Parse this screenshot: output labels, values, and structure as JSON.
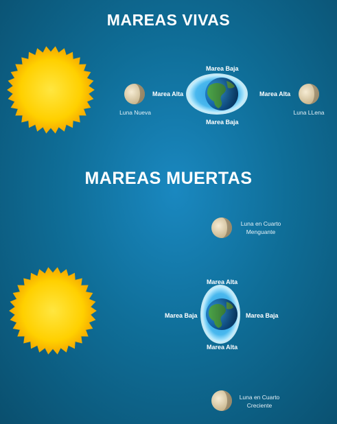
{
  "spring": {
    "title": "MAREAS VIVAS",
    "label_top": "Marea Baja",
    "label_bottom": "Marea Baja",
    "label_left": "Marea Alta",
    "label_right": "Marea Alta",
    "moon_left": "Luna Nueva",
    "moon_right": "Luna LLena"
  },
  "neap": {
    "title": "MAREAS MUERTAS",
    "label_top": "Marea Alta",
    "label_bottom": "Marea Alta",
    "label_left": "Marea Baja",
    "label_right": "Marea Baja",
    "moon_top_line1": "Luna en Cuarto",
    "moon_top_line2": "Menguante",
    "moon_bottom_line1": "Luna en Cuarto",
    "moon_bottom_line2": "Creciente"
  },
  "colors": {
    "background": "#0f6e98",
    "sun": "#ffd400",
    "tide_bulge": "#7fd6f5",
    "ocean": "#1f8fd6",
    "land": "#4ea84a",
    "moon": "#e9dcc0"
  }
}
